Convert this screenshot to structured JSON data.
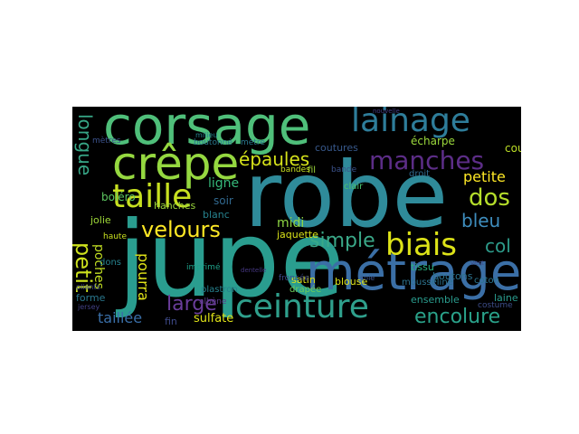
{
  "words": [
    {
      "text": "jupe",
      "color": "#2a9d8f"
    },
    {
      "text": "robe",
      "color": "#2f8b9a"
    },
    {
      "text": "corsage",
      "color": "#4fbf7a"
    },
    {
      "text": "métrage",
      "color": "#3b6fa6"
    },
    {
      "text": "crêpe",
      "color": "#95d840"
    },
    {
      "text": "lainage",
      "color": "#2e7d9a"
    },
    {
      "text": "ceinture",
      "color": "#2fa08c"
    },
    {
      "text": "biais",
      "color": "#dde318"
    },
    {
      "text": "taille",
      "color": "#c7e020"
    },
    {
      "text": "manches",
      "color": "#5c2d87"
    },
    {
      "text": "velours",
      "color": "#fde725"
    },
    {
      "text": "encolure",
      "color": "#2aa28a"
    },
    {
      "text": "large",
      "color": "#6a3d9a"
    },
    {
      "text": "simple",
      "color": "#3aa888"
    },
    {
      "text": "dos",
      "color": "#b5de2b"
    },
    {
      "text": "bleu",
      "color": "#3e8dbd"
    },
    {
      "text": "col",
      "color": "#2d9b8a"
    },
    {
      "text": "petit",
      "color": "#cde11d"
    },
    {
      "text": "longue",
      "color": "#37a686"
    },
    {
      "text": "épaules",
      "color": "#d5e21a"
    },
    {
      "text": "petite",
      "color": "#fde725"
    },
    {
      "text": "taillée",
      "color": "#3a6fa8"
    },
    {
      "text": "pourra",
      "color": "#e2e418"
    },
    {
      "text": "poches",
      "color": "#c2df23"
    },
    {
      "text": "midi",
      "color": "#8fd744"
    },
    {
      "text": "ligne",
      "color": "#35b779"
    },
    {
      "text": "hanches",
      "color": "#9ad53c"
    },
    {
      "text": "boléro",
      "color": "#5ec962"
    },
    {
      "text": "soir",
      "color": "#31688e"
    },
    {
      "text": "blanc",
      "color": "#26828e"
    },
    {
      "text": "jolie",
      "color": "#a0da39"
    },
    {
      "text": "haute",
      "color": "#c8e020"
    },
    {
      "text": "dons",
      "color": "#26828e"
    },
    {
      "text": "forme",
      "color": "#2a788e"
    },
    {
      "text": "fin",
      "color": "#3e4a89"
    },
    {
      "text": "sulfate",
      "color": "#e0e318"
    },
    {
      "text": "satin",
      "color": "#dde318"
    },
    {
      "text": "drapée",
      "color": "#6ccd5a"
    },
    {
      "text": "jaquette",
      "color": "#d8e219"
    },
    {
      "text": "blouse",
      "color": "#dde318"
    },
    {
      "text": "coutures",
      "color": "#38598c"
    },
    {
      "text": "écharpe",
      "color": "#9bd93c"
    },
    {
      "text": "cou",
      "color": "#bddf26"
    },
    {
      "text": "boutons",
      "color": "#2c728e"
    },
    {
      "text": "ensemble",
      "color": "#2a9d8f"
    },
    {
      "text": "tissu",
      "color": "#29af7f"
    },
    {
      "text": "mousseline",
      "color": "#2c728e"
    },
    {
      "text": "laine",
      "color": "#2a9d8f"
    },
    {
      "text": "coton",
      "color": "#2b758e"
    },
    {
      "text": "fil",
      "color": "#9fda3a"
    },
    {
      "text": "bandes",
      "color": "#c7e020"
    },
    {
      "text": "droit",
      "color": "#306a8e"
    },
    {
      "text": "clair",
      "color": "#4ac16d"
    },
    {
      "text": "mètres",
      "color": "#3b528b"
    },
    {
      "text": "boutonné",
      "color": "#2a788e"
    },
    {
      "text": "mètre",
      "color": "#2a778e"
    },
    {
      "text": "bande",
      "color": "#3b528b"
    },
    {
      "text": "plastron",
      "color": "#26828e"
    },
    {
      "text": "imprimé",
      "color": "#1fa088"
    },
    {
      "text": "froncée",
      "color": "#3e4989"
    },
    {
      "text": "albène",
      "color": "#5c3c8a"
    },
    {
      "text": "costume",
      "color": "#3d4e8a"
    },
    {
      "text": "soie",
      "color": "#3b528b"
    },
    {
      "text": "milieu",
      "color": "#26828e"
    },
    {
      "text": "pliants",
      "color": "#3e4a89"
    },
    {
      "text": "jersey",
      "color": "#424086"
    },
    {
      "text": "nouvelle",
      "color": "#433d84"
    },
    {
      "text": "vest",
      "color": "#3f4889"
    },
    {
      "text": "dentelle",
      "color": "#453781"
    }
  ]
}
